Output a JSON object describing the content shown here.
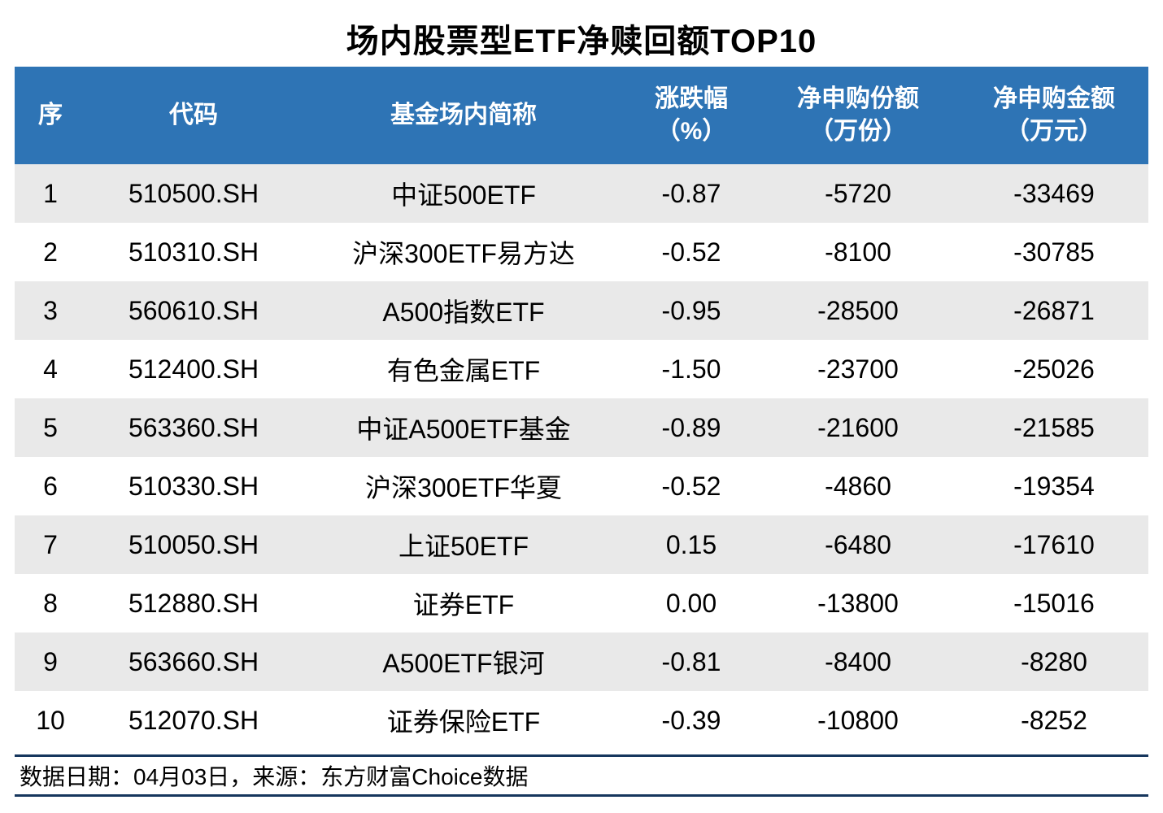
{
  "title": "场内股票型ETF净赎回额TOP10",
  "header_cells": [
    {
      "l1": "序",
      "l2": ""
    },
    {
      "l1": "代码",
      "l2": ""
    },
    {
      "l1": "基金场内简称",
      "l2": ""
    },
    {
      "l1": "涨跌幅",
      "l2": "（%）"
    },
    {
      "l1": "净申购份额",
      "l2": "（万份）"
    },
    {
      "l1": "净申购金额",
      "l2": "（万元）"
    }
  ],
  "chart_data": {
    "type": "table",
    "title": "场内股票型ETF净赎回额TOP10",
    "columns": [
      "序",
      "代码",
      "基金场内简称",
      "涨跌幅（%）",
      "净申购份额（万份）",
      "净申购金额（万元）"
    ],
    "rows": [
      [
        "1",
        "510500.SH",
        "中证500ETF",
        "-0.87",
        "-5720",
        "-33469"
      ],
      [
        "2",
        "510310.SH",
        "沪深300ETF易方达",
        "-0.52",
        "-8100",
        "-30785"
      ],
      [
        "3",
        "560610.SH",
        "A500指数ETF",
        "-0.95",
        "-28500",
        "-26871"
      ],
      [
        "4",
        "512400.SH",
        "有色金属ETF",
        "-1.50",
        "-23700",
        "-25026"
      ],
      [
        "5",
        "563360.SH",
        "中证A500ETF基金",
        "-0.89",
        "-21600",
        "-21585"
      ],
      [
        "6",
        "510330.SH",
        "沪深300ETF华夏",
        "-0.52",
        "-4860",
        "-19354"
      ],
      [
        "7",
        "510050.SH",
        "上证50ETF",
        "0.15",
        "-6480",
        "-17610"
      ],
      [
        "8",
        "512880.SH",
        "证券ETF",
        "0.00",
        "-13800",
        "-15016"
      ],
      [
        "9",
        "563660.SH",
        "A500ETF银河",
        "-0.81",
        "-8400",
        "-8280"
      ],
      [
        "10",
        "512070.SH",
        "证券保险ETF",
        "-0.39",
        "-10800",
        "-8252"
      ]
    ]
  },
  "footer": {
    "text": "数据日期：04月03日，来源：东方财富Choice数据"
  },
  "colors": {
    "header_bg": "#2E74B5",
    "row_alt": "#E9E9E9",
    "footer_line": "#16365D"
  }
}
